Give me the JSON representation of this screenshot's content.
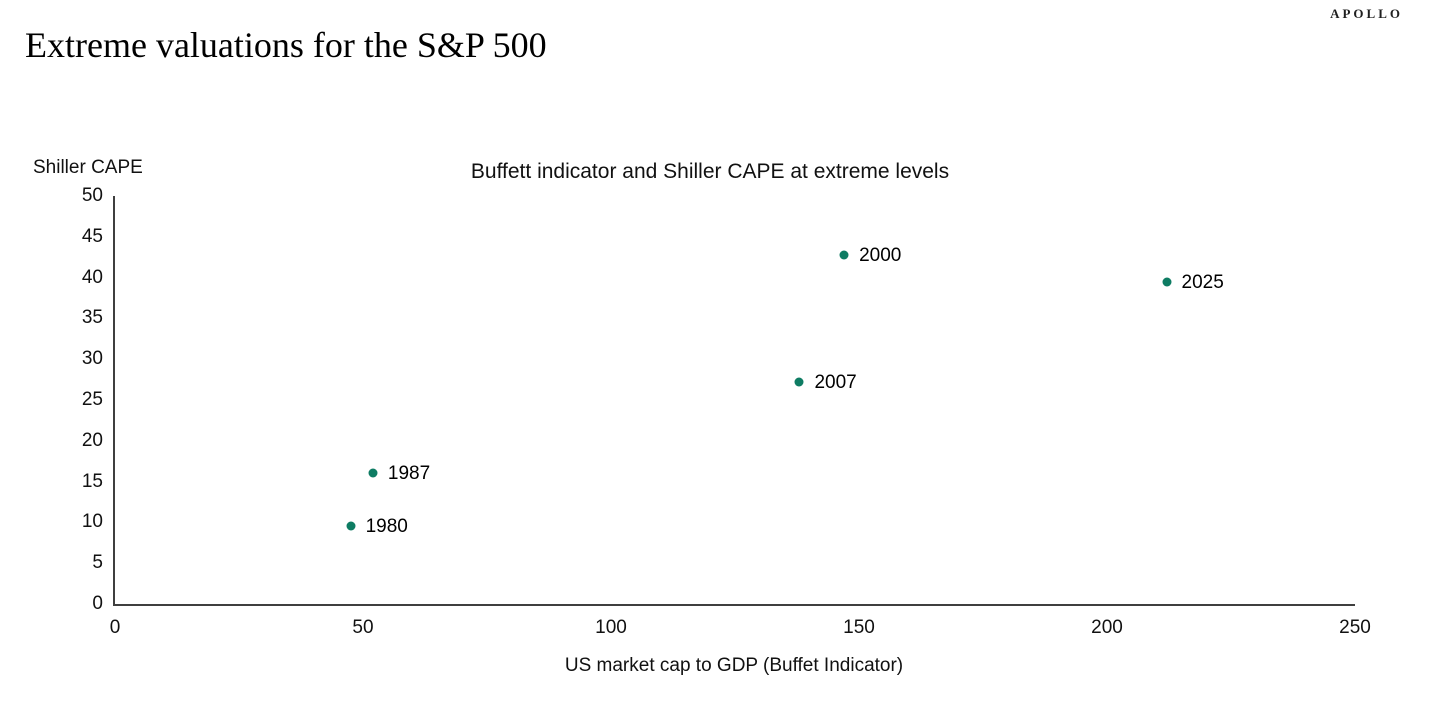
{
  "header": {
    "brand": "APOLLO",
    "title": "Extreme valuations for the S&P 500"
  },
  "chart_data": {
    "type": "scatter",
    "title": "Buffett indicator and Shiller CAPE at extreme levels",
    "xlabel": "US market cap to GDP (Buffet Indicator)",
    "ylabel": "Shiller CAPE",
    "xlim": [
      0,
      250
    ],
    "ylim": [
      0,
      50
    ],
    "x_ticks": [
      0,
      50,
      100,
      150,
      200,
      250
    ],
    "y_ticks": [
      0,
      5,
      10,
      15,
      20,
      25,
      30,
      35,
      40,
      45,
      50
    ],
    "grid": false,
    "legend": "none",
    "point_color": "#0e7c63",
    "points": [
      {
        "label": "1980",
        "x": 47.5,
        "y": 9.6
      },
      {
        "label": "1987",
        "x": 52,
        "y": 16.1
      },
      {
        "label": "2007",
        "x": 138,
        "y": 27.2
      },
      {
        "label": "2000",
        "x": 147,
        "y": 42.8
      },
      {
        "label": "2025",
        "x": 212,
        "y": 39.4
      }
    ]
  }
}
